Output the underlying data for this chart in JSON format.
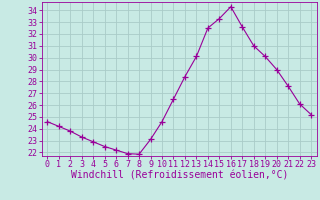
{
  "x": [
    0,
    1,
    2,
    3,
    4,
    5,
    6,
    7,
    8,
    9,
    10,
    11,
    12,
    13,
    14,
    15,
    16,
    17,
    18,
    19,
    20,
    21,
    22,
    23
  ],
  "y": [
    24.6,
    24.2,
    23.8,
    23.3,
    22.9,
    22.5,
    22.2,
    21.9,
    21.85,
    23.1,
    24.6,
    26.5,
    28.4,
    30.1,
    32.5,
    33.3,
    34.3,
    32.6,
    31.0,
    30.1,
    29.0,
    27.6,
    26.1,
    25.2
  ],
  "line_color": "#990099",
  "marker": "+",
  "bg_color": "#c8eae4",
  "grid_color": "#aaccc8",
  "xlabel": "Windchill (Refroidissement éolien,°C)",
  "ylim_min": 21.7,
  "ylim_max": 34.7,
  "xlim_min": -0.5,
  "xlim_max": 23.5,
  "yticks": [
    22,
    23,
    24,
    25,
    26,
    27,
    28,
    29,
    30,
    31,
    32,
    33,
    34
  ],
  "xticks": [
    0,
    1,
    2,
    3,
    4,
    5,
    6,
    7,
    8,
    9,
    10,
    11,
    12,
    13,
    14,
    15,
    16,
    17,
    18,
    19,
    20,
    21,
    22,
    23
  ],
  "tick_label_color": "#990099",
  "xlabel_color": "#990099",
  "font_size": 6,
  "xlabel_fontsize": 7,
  "line_width": 0.8,
  "marker_size": 4
}
